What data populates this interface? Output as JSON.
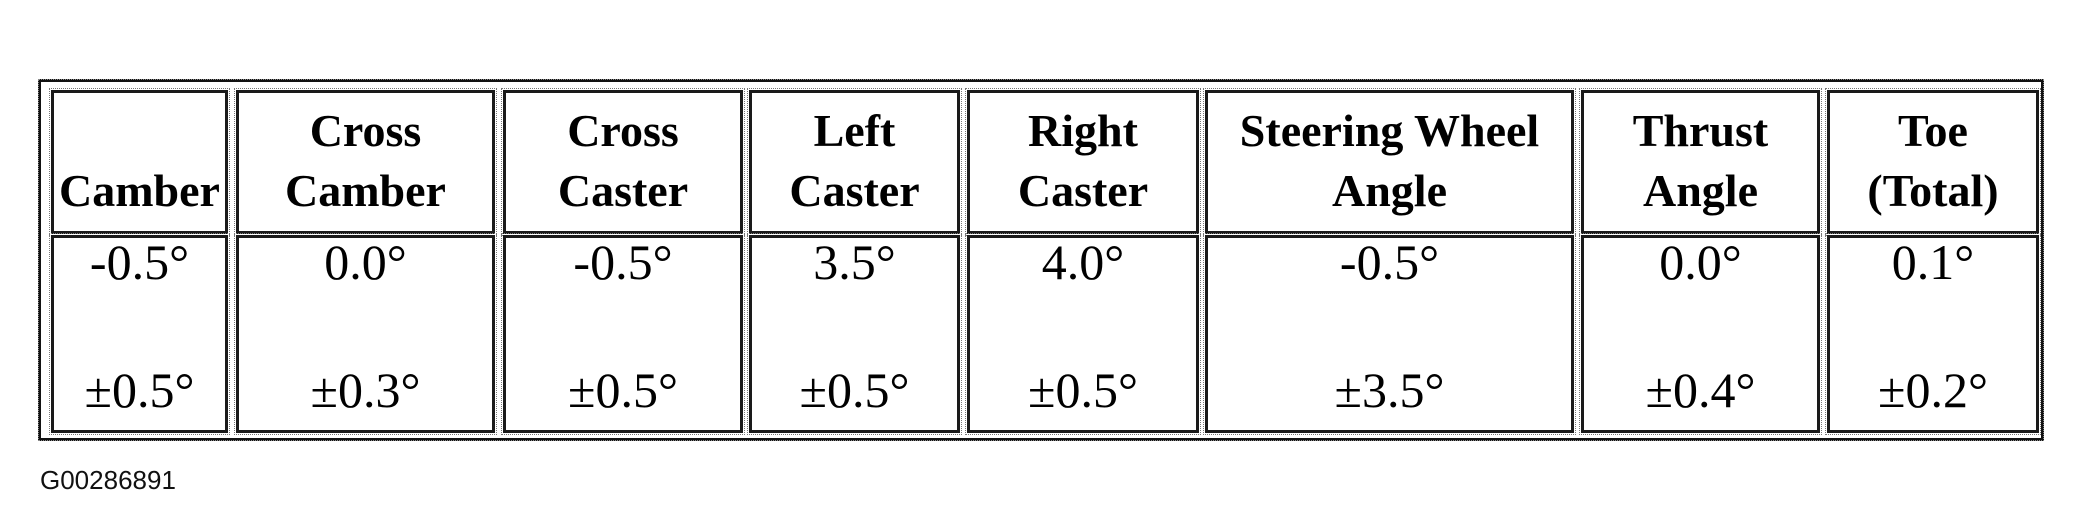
{
  "table": {
    "columns": [
      {
        "header": [
          "",
          "Camber"
        ],
        "value": "-0.5°",
        "tolerance": "±0.5°"
      },
      {
        "header": [
          "Cross",
          "Camber"
        ],
        "value": "0.0°",
        "tolerance": "±0.3°"
      },
      {
        "header": [
          "Cross",
          "Caster"
        ],
        "value": "-0.5°",
        "tolerance": "±0.5°"
      },
      {
        "header": [
          "Left",
          "Caster"
        ],
        "value": "3.5°",
        "tolerance": "±0.5°"
      },
      {
        "header": [
          "Right",
          "Caster"
        ],
        "value": "4.0°",
        "tolerance": "±0.5°"
      },
      {
        "header": [
          "Steering Wheel",
          "Angle"
        ],
        "value": "-0.5°",
        "tolerance": "±3.5°"
      },
      {
        "header": [
          "Thrust",
          "Angle"
        ],
        "value": "0.0°",
        "tolerance": "±0.4°"
      },
      {
        "header": [
          "Toe",
          "(Total)"
        ],
        "value": "0.1°",
        "tolerance": "±0.2°"
      }
    ]
  },
  "figure_code": "G00286891"
}
